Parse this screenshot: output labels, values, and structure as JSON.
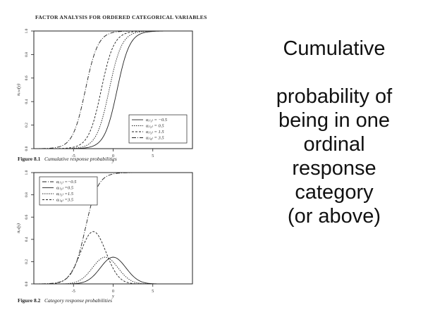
{
  "book_header": "FACTOR ANALYSIS FOR ORDERED CATEGORICAL VARIABLES",
  "slide_text": {
    "lines": [
      "Cumulative",
      "",
      "probability of",
      "being in one",
      "ordinal",
      "response",
      "category",
      "(or above)"
    ]
  },
  "chart_data": [
    {
      "type": "line",
      "figure_label": "Figure 8.1",
      "caption": "Cumulative response probabilities",
      "xlabel": "y",
      "ylabel": "πᵢ₍ₛ₎(y)",
      "xlim": [
        -10,
        10
      ],
      "ylim": [
        0,
        1
      ],
      "xticks": [
        -5,
        0,
        5
      ],
      "yticks": [
        "0.0",
        "0.2",
        "0.4",
        "0.6",
        "0.8",
        "1.0"
      ],
      "legend_position": "bottom-right",
      "series": [
        {
          "name": "αᵢ₍₁₎ = −0.5",
          "location": -0.5,
          "scale": 1.0,
          "dash": "none"
        },
        {
          "name": "αᵢ₍₂₎ = 0.5",
          "location": 0.5,
          "scale": 1.0,
          "dash": "1.5 1.5"
        },
        {
          "name": "αᵢ₍₃₎ = 1.5",
          "location": 1.5,
          "scale": 1.0,
          "dash": "3 2"
        },
        {
          "name": "αᵢ₍₄₎ = 3.5",
          "location": 3.5,
          "scale": 1.0,
          "dash": "6 2 1 2"
        }
      ]
    },
    {
      "type": "line",
      "figure_label": "Figure 8.2",
      "caption": "Category response probabilities",
      "xlabel": "y",
      "ylabel": "πᵢₛ(y)",
      "xlim": [
        -10,
        10
      ],
      "ylim": [
        0,
        1
      ],
      "xticks": [
        -5,
        0,
        5
      ],
      "yticks": [
        "0.0",
        "0.2",
        "0.4",
        "0.6",
        "0.8",
        "1.0"
      ],
      "legend_position": "top-left",
      "series": [
        {
          "name": "αᵢ₍₁₎ =−0.5",
          "kind": "top",
          "location": 3.5,
          "dash": "6 2 1 2"
        },
        {
          "name": "αᵢ₍₂₎ =0.5",
          "kind": "bump",
          "location": 0.0,
          "peak": 0.24,
          "dash": "none"
        },
        {
          "name": "αᵢ₍₃₎ =1.5",
          "kind": "bump",
          "location": -1.0,
          "peak": 0.24,
          "dash": "1.5 1.5"
        },
        {
          "name": "αᵢ₍₄₎ =3.5",
          "kind": "bump",
          "location": -2.5,
          "peak": 0.47,
          "dash": "3 2"
        }
      ]
    }
  ]
}
